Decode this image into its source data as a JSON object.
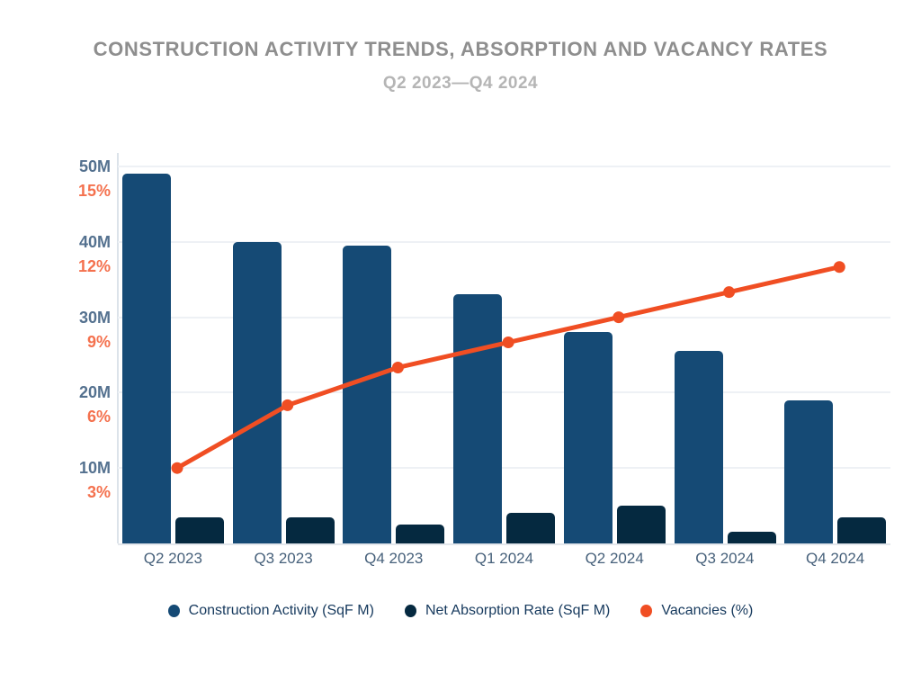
{
  "header": {
    "title": "CONSTRUCTION ACTIVITY TRENDS, ABSORPTION AND VACANCY RATES",
    "subtitle": "Q2 2023—Q4 2024"
  },
  "colors": {
    "title_text": "#8e8e8e",
    "subtitle_text": "#b5b5b5",
    "construction_bar": "#154a75",
    "absorption_bar": "#052940",
    "vacancies_line": "#f04e23",
    "m_axis_text": "#54718f",
    "pct_axis_text": "#f4714e",
    "x_axis_text": "#47617b",
    "legend_text": "#16395d",
    "gridline": "#eef1f5"
  },
  "chart_data": {
    "type": "bar",
    "subtype": "grouped-bars-with-line-overlay",
    "title": "CONSTRUCTION ACTIVITY TRENDS, ABSORPTION AND VACANCY RATES",
    "subtitle": "Q2 2023—Q4 2024",
    "categories": [
      "Q2 2023",
      "Q3 2023",
      "Q4 2023",
      "Q1 2024",
      "Q2 2024",
      "Q3 2024",
      "Q4 2024"
    ],
    "series": [
      {
        "name": "Construction Activity (SqF M)",
        "kind": "bar",
        "color": "#154a75",
        "axis": "millions",
        "values": [
          49,
          40,
          39.5,
          33,
          28,
          25.5,
          19
        ]
      },
      {
        "name": "Net Absorption Rate (SqF M)",
        "kind": "bar",
        "color": "#052940",
        "axis": "millions",
        "values": [
          3.5,
          3.5,
          2.5,
          4,
          5,
          1.5,
          3.5
        ]
      },
      {
        "name": "Vacancies (%)",
        "kind": "line",
        "color": "#f04e23",
        "axis": "percent",
        "values": [
          3,
          5.5,
          7,
          8,
          9,
          10,
          11
        ]
      }
    ],
    "left_axis_millions": {
      "tick_labels": [
        "10M",
        "20M",
        "30M",
        "40M",
        "50M"
      ],
      "range": [
        0,
        50
      ],
      "label_color": "#54718f"
    },
    "left_axis_percent": {
      "tick_labels": [
        "3%",
        "6%",
        "9%",
        "12%",
        "15%"
      ],
      "range": [
        0,
        15
      ],
      "label_color": "#f4714e"
    },
    "grid": "horizontal-only",
    "legend_position": "bottom"
  }
}
